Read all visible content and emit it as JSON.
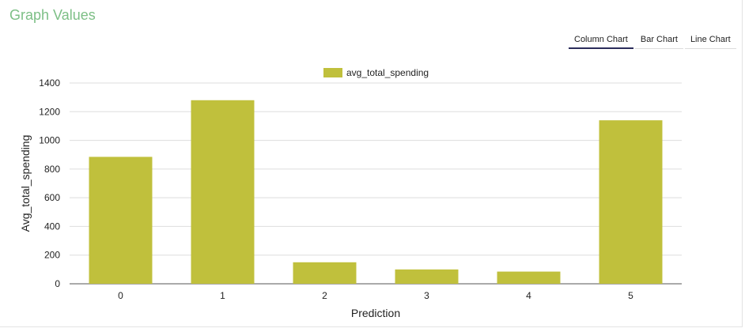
{
  "header": {
    "title": "Graph Values"
  },
  "tabs": [
    {
      "label": "Column Chart",
      "active": true
    },
    {
      "label": "Bar Chart",
      "active": false
    },
    {
      "label": "Line Chart",
      "active": false
    }
  ],
  "colors": {
    "bar": "#c0c03c",
    "title": "#7dbf86",
    "grid": "#dddddd",
    "axis": "#333333"
  },
  "chart_data": {
    "type": "bar",
    "categories": [
      "0",
      "1",
      "2",
      "3",
      "4",
      "5"
    ],
    "series": [
      {
        "name": "avg_total_spending",
        "values": [
          885,
          1280,
          150,
          100,
          85,
          1140
        ]
      }
    ],
    "xlabel": "Prediction",
    "ylabel": "Avg_total_spending",
    "ylim": [
      0,
      1400
    ],
    "yticks": [
      0,
      200,
      400,
      600,
      800,
      1000,
      1200,
      1400
    ],
    "grid": true,
    "legend": "top-center"
  }
}
